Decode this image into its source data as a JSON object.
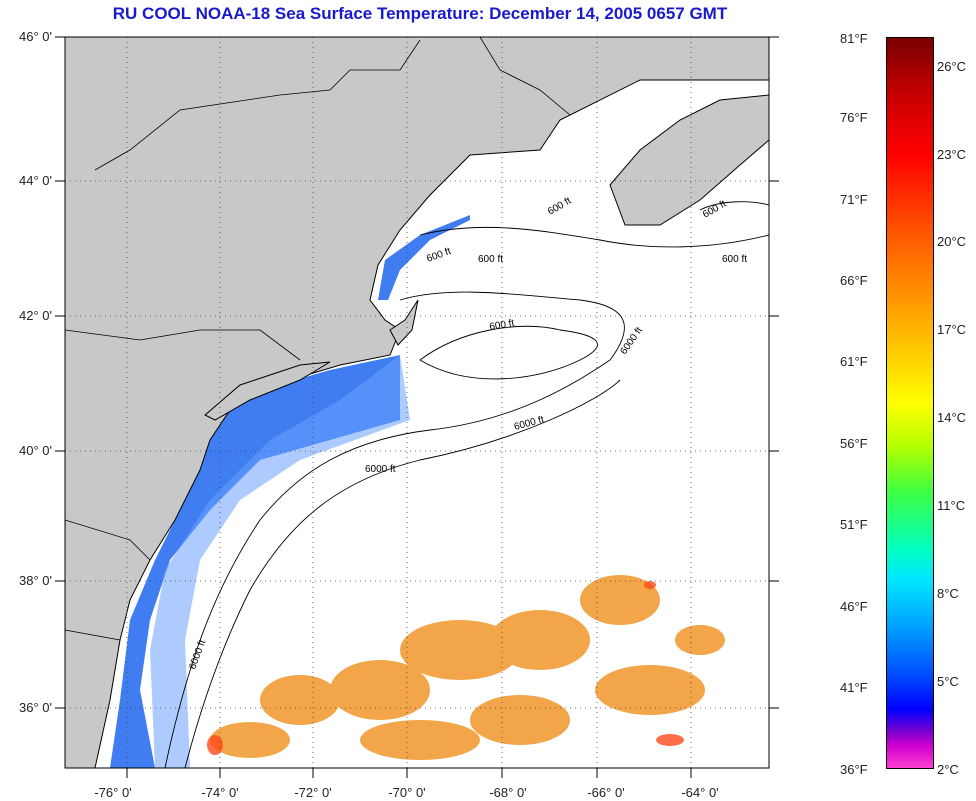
{
  "title": "RU COOL  NOAA-18  Sea Surface Temperature:  December 14, 2005 0657 GMT",
  "map": {
    "lat_labels": [
      "46° 0'",
      "44° 0'",
      "42° 0'",
      "40° 0'",
      "38° 0'",
      "36° 0'"
    ],
    "lon_labels": [
      "-76° 0'",
      "-74° 0'",
      "-72° 0'",
      "-70° 0'",
      "-68° 0'",
      "-66° 0'",
      "-64° 0'"
    ],
    "contour_labels": [
      "600 ft",
      "600 ft",
      "600 ft",
      "600 ft",
      "600 ft",
      "6000 ft",
      "6000 ft",
      "6000 ft",
      "6000 ft",
      "600 ft"
    ],
    "colors": {
      "land": "#c8c8c8",
      "coast": "#000000",
      "cold_water": "#1e6cf0",
      "warm_water": "#f08a20"
    }
  },
  "colorbar": {
    "fahrenheit": [
      "81°F",
      "76°F",
      "71°F",
      "66°F",
      "61°F",
      "56°F",
      "51°F",
      "46°F",
      "41°F",
      "36°F"
    ],
    "celsius": [
      "26°C",
      "23°C",
      "20°C",
      "17°C",
      "14°C",
      "11°C",
      "8°C",
      "5°C",
      "2°C"
    ]
  }
}
